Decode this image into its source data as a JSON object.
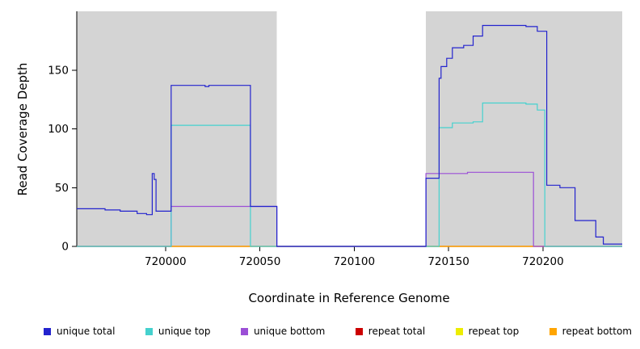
{
  "chart_data": {
    "type": "line",
    "title": "",
    "xlabel": "Coordinate in Reference Genome",
    "ylabel": "Read Coverage Depth",
    "xlim": [
      719953,
      720242
    ],
    "ylim": [
      0,
      200
    ],
    "grid": false,
    "legend_position": "bottom",
    "background": "#FFFFFF",
    "panel_shade_color": "#D4D4D4",
    "x_ticks": [
      {
        "value": 720000,
        "label": "720000"
      },
      {
        "value": 720050,
        "label": "720050"
      },
      {
        "value": 720100,
        "label": "720100"
      },
      {
        "value": 720150,
        "label": "720150"
      },
      {
        "value": 720200,
        "label": "720200"
      }
    ],
    "y_ticks": [
      {
        "value": 0,
        "label": "0"
      },
      {
        "value": 50,
        "label": "50"
      },
      {
        "value": 100,
        "label": "100"
      },
      {
        "value": 150,
        "label": "150"
      }
    ],
    "shaded_regions": [
      {
        "from": 719953,
        "to": 720059
      },
      {
        "from": 720138,
        "to": 720242
      }
    ],
    "draw_order": [
      4,
      3,
      5,
      2,
      1,
      0
    ],
    "series": [
      {
        "name": "unique total",
        "color": "#2323CE",
        "segments": [
          [
            [
              719953,
              32
            ],
            [
              719968,
              32
            ],
            [
              719968,
              31
            ],
            [
              719976,
              31
            ],
            [
              719976,
              30
            ],
            [
              719985,
              30
            ],
            [
              719985,
              28
            ],
            [
              719990,
              28
            ],
            [
              719990,
              27
            ],
            [
              719993,
              27
            ],
            [
              719993,
              62
            ],
            [
              719994,
              62
            ],
            [
              719994,
              57
            ],
            [
              719995,
              57
            ],
            [
              719995,
              30
            ],
            [
              720003,
              30
            ],
            [
              720003,
              137
            ],
            [
              720021,
              137
            ],
            [
              720021,
              136
            ],
            [
              720023,
              136
            ],
            [
              720023,
              137
            ],
            [
              720045,
              137
            ],
            [
              720045,
              34
            ],
            [
              720059,
              34
            ],
            [
              720059,
              0
            ],
            [
              720138,
              0
            ],
            [
              720138,
              58
            ],
            [
              720145,
              58
            ],
            [
              720145,
              143
            ],
            [
              720146,
              143
            ],
            [
              720146,
              153
            ],
            [
              720149,
              153
            ],
            [
              720149,
              160
            ],
            [
              720152,
              160
            ],
            [
              720152,
              169
            ],
            [
              720158,
              169
            ],
            [
              720158,
              171
            ],
            [
              720163,
              171
            ],
            [
              720163,
              179
            ],
            [
              720168,
              179
            ],
            [
              720168,
              188
            ],
            [
              720191,
              188
            ],
            [
              720191,
              187
            ],
            [
              720197,
              187
            ],
            [
              720197,
              183
            ],
            [
              720202,
              183
            ],
            [
              720202,
              52
            ],
            [
              720209,
              52
            ],
            [
              720209,
              50
            ],
            [
              720217,
              50
            ],
            [
              720217,
              22
            ],
            [
              720228,
              22
            ],
            [
              720228,
              8
            ],
            [
              720232,
              8
            ],
            [
              720232,
              2
            ],
            [
              720242,
              2
            ]
          ]
        ]
      },
      {
        "name": "unique top",
        "color": "#45D1CE",
        "segments": [
          [
            [
              719953,
              0
            ],
            [
              720003,
              0
            ],
            [
              720003,
              103
            ],
            [
              720045,
              103
            ],
            [
              720045,
              0
            ],
            [
              720145,
              0
            ],
            [
              720145,
              101
            ],
            [
              720152,
              101
            ],
            [
              720152,
              105
            ],
            [
              720163,
              105
            ],
            [
              720163,
              106
            ],
            [
              720168,
              106
            ],
            [
              720168,
              122
            ],
            [
              720191,
              122
            ],
            [
              720191,
              121
            ],
            [
              720197,
              121
            ],
            [
              720197,
              116
            ],
            [
              720201,
              116
            ],
            [
              720201,
              0
            ],
            [
              720242,
              0
            ]
          ]
        ]
      },
      {
        "name": "unique bottom",
        "color": "#9B4FD6",
        "segments": [
          [
            [
              719953,
              0
            ],
            [
              720003,
              0
            ],
            [
              720003,
              34
            ],
            [
              720059,
              34
            ],
            [
              720059,
              0
            ],
            [
              720138,
              0
            ],
            [
              720138,
              62
            ],
            [
              720160,
              62
            ],
            [
              720160,
              63
            ],
            [
              720195,
              63
            ],
            [
              720195,
              0
            ],
            [
              720242,
              0
            ]
          ]
        ]
      },
      {
        "name": "repeat total",
        "color": "#CC0000",
        "segments": [
          [
            [
              719953,
              0
            ],
            [
              720242,
              0
            ]
          ]
        ]
      },
      {
        "name": "repeat top",
        "color": "#EDED00",
        "segments": [
          [
            [
              719953,
              0
            ],
            [
              720242,
              0
            ]
          ]
        ]
      },
      {
        "name": "repeat bottom",
        "color": "#FFA500",
        "segments": [
          [
            [
              720001,
              0
            ],
            [
              720046,
              0
            ]
          ],
          [
            [
              720139,
              0
            ],
            [
              720195,
              0
            ]
          ]
        ]
      }
    ]
  }
}
